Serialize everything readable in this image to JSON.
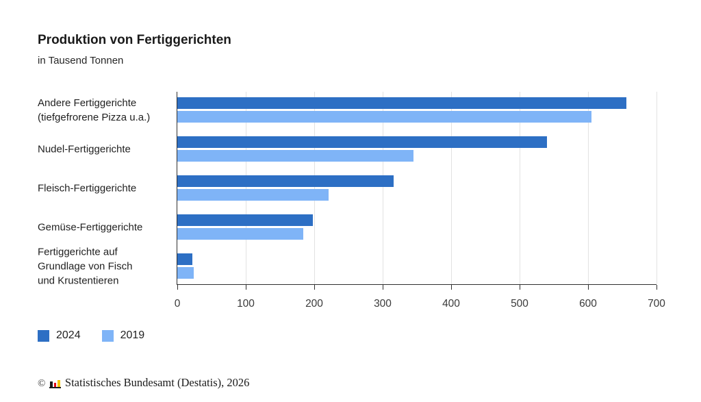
{
  "header": {
    "title": "Produktion von Fertiggerichten",
    "subtitle": "in Tausend Tonnen"
  },
  "chart_data": {
    "type": "bar",
    "orientation": "horizontal",
    "value_unit": "Tausend Tonnen",
    "categories": [
      "Andere Fertiggerichte\n(tiefgefrorene Pizza u.a.)",
      "Nudel-Fertiggerichte",
      "Fleisch-Fertiggerichte",
      "Gemüse-Fertiggerichte",
      "Fertiggerichte auf\nGrundlage von Fisch\nund Krustentieren"
    ],
    "series": [
      {
        "name": "2024",
        "color": "#2d6fc4",
        "values": [
          656,
          540,
          316,
          198,
          22
        ]
      },
      {
        "name": "2019",
        "color": "#7fb4f7",
        "values": [
          605,
          345,
          221,
          184,
          24
        ]
      }
    ],
    "xlim": [
      0,
      700
    ],
    "ticks": [
      0,
      100,
      200,
      300,
      400,
      500,
      600,
      700
    ],
    "grid": true,
    "legend_position": "bottom-left"
  },
  "footer": {
    "copyright": "©",
    "source": "Statistisches Bundesamt (Destatis), 2026"
  }
}
